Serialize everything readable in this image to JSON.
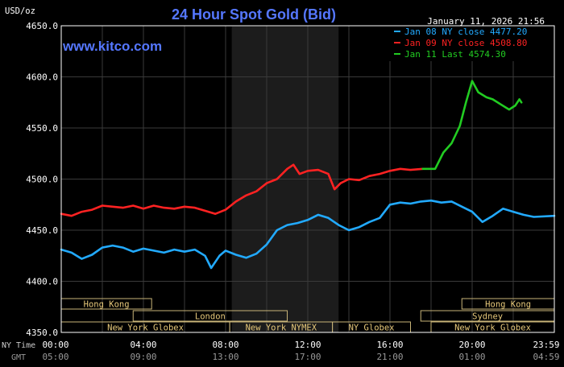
{
  "chart_data": {
    "type": "line",
    "title": "24 Hour Spot Gold (Bid)",
    "unit_label": "USD/oz",
    "watermark": "www.kitco.com",
    "date_label": "January 11, 2026 21:56",
    "y_ticks": [
      "4650.0",
      "4600.0",
      "4550.0",
      "4500.0",
      "4450.0",
      "4400.0",
      "4350.0"
    ],
    "ylim": [
      4350,
      4650
    ],
    "x_range_hours": [
      0,
      24
    ],
    "x_ticks": [
      {
        "h": 0,
        "ny": "00:00",
        "gmt": "05:00"
      },
      {
        "h": 4,
        "ny": "04:00",
        "gmt": "09:00"
      },
      {
        "h": 8,
        "ny": "08:00",
        "gmt": "13:00"
      },
      {
        "h": 12,
        "ny": "12:00",
        "gmt": "17:00"
      },
      {
        "h": 16,
        "ny": "16:00",
        "gmt": "21:00"
      },
      {
        "h": 20,
        "ny": "20:00",
        "gmt": "01:00"
      },
      {
        "h": 24,
        "ny": "23:59",
        "gmt": "04:59"
      }
    ],
    "row_labels": {
      "ny": "NY Time",
      "gmt": "GMT"
    },
    "shaded_range_hours": [
      8.3,
      13.5
    ],
    "legend": [
      {
        "text": "Jan 08 NY close 4477.20",
        "color": "#22aaff"
      },
      {
        "text": "Jan 09 NY close 4508.80",
        "color": "#ff2222"
      },
      {
        "text": "Jan 11 Last 4574.30",
        "color": "#22cc22"
      }
    ],
    "sessions": [
      {
        "label": "Hong Kong",
        "start": 0,
        "end": 4.4,
        "row": 0
      },
      {
        "label": "Hong Kong",
        "start": 19.5,
        "end": 24,
        "row": 0
      },
      {
        "label": "London",
        "start": 3.5,
        "end": 11,
        "row": 1
      },
      {
        "label": "Sydney",
        "start": 17.5,
        "end": 24,
        "row": 1
      },
      {
        "label": "New York Globex",
        "start": 0,
        "end": 8.2,
        "row": 2
      },
      {
        "label": "New York NYMEX",
        "start": 8.2,
        "end": 13.2,
        "row": 2
      },
      {
        "label": "NY Globex",
        "start": 13.2,
        "end": 17,
        "row": 2
      },
      {
        "label": "New York Globex",
        "start": 18,
        "end": 24,
        "row": 2
      }
    ],
    "series": [
      {
        "name": "Jan 08",
        "color": "#22aaff",
        "points": [
          [
            0,
            4431
          ],
          [
            0.5,
            4428
          ],
          [
            1,
            4422
          ],
          [
            1.5,
            4426
          ],
          [
            2,
            4433
          ],
          [
            2.5,
            4435
          ],
          [
            3,
            4433
          ],
          [
            3.5,
            4429
          ],
          [
            4,
            4432
          ],
          [
            4.5,
            4430
          ],
          [
            5,
            4428
          ],
          [
            5.5,
            4431
          ],
          [
            6,
            4429
          ],
          [
            6.5,
            4431
          ],
          [
            7,
            4425
          ],
          [
            7.3,
            4413
          ],
          [
            7.7,
            4425
          ],
          [
            8,
            4430
          ],
          [
            8.5,
            4426
          ],
          [
            9,
            4423
          ],
          [
            9.5,
            4427
          ],
          [
            10,
            4436
          ],
          [
            10.5,
            4450
          ],
          [
            11,
            4455
          ],
          [
            11.5,
            4457
          ],
          [
            12,
            4460
          ],
          [
            12.5,
            4465
          ],
          [
            13,
            4462
          ],
          [
            13.5,
            4455
          ],
          [
            14,
            4450
          ],
          [
            14.5,
            4453
          ],
          [
            15,
            4458
          ],
          [
            15.5,
            4462
          ],
          [
            16,
            4475
          ],
          [
            16.5,
            4477
          ],
          [
            17,
            4476
          ],
          [
            17.5,
            4478
          ],
          [
            18,
            4479
          ],
          [
            18.5,
            4477
          ],
          [
            19,
            4478
          ],
          [
            19.5,
            4473
          ],
          [
            20,
            4468
          ],
          [
            20.5,
            4458
          ],
          [
            21,
            4464
          ],
          [
            21.5,
            4471
          ],
          [
            22,
            4468
          ],
          [
            22.5,
            4465
          ],
          [
            23,
            4463
          ],
          [
            24,
            4464
          ]
        ]
      },
      {
        "name": "Jan 09",
        "color": "#ff2222",
        "points": [
          [
            0,
            4466
          ],
          [
            0.5,
            4464
          ],
          [
            1,
            4468
          ],
          [
            1.5,
            4470
          ],
          [
            2,
            4474
          ],
          [
            2.5,
            4473
          ],
          [
            3,
            4472
          ],
          [
            3.5,
            4474
          ],
          [
            4,
            4471
          ],
          [
            4.5,
            4474
          ],
          [
            5,
            4472
          ],
          [
            5.5,
            4471
          ],
          [
            6,
            4473
          ],
          [
            6.5,
            4472
          ],
          [
            7,
            4469
          ],
          [
            7.5,
            4466
          ],
          [
            8,
            4470
          ],
          [
            8.5,
            4478
          ],
          [
            9,
            4484
          ],
          [
            9.5,
            4488
          ],
          [
            10,
            4496
          ],
          [
            10.5,
            4500
          ],
          [
            11,
            4510
          ],
          [
            11.3,
            4514
          ],
          [
            11.6,
            4505
          ],
          [
            12,
            4508
          ],
          [
            12.5,
            4509
          ],
          [
            13,
            4505
          ],
          [
            13.3,
            4490
          ],
          [
            13.6,
            4496
          ],
          [
            14,
            4500
          ],
          [
            14.5,
            4499
          ],
          [
            15,
            4503
          ],
          [
            15.5,
            4505
          ],
          [
            16,
            4508
          ],
          [
            16.5,
            4510
          ],
          [
            17,
            4509
          ],
          [
            17.6,
            4510
          ]
        ]
      },
      {
        "name": "Jan 11",
        "color": "#22cc22",
        "points": [
          [
            17.6,
            4510
          ],
          [
            18.2,
            4510
          ],
          [
            18.6,
            4526
          ],
          [
            19,
            4535
          ],
          [
            19.4,
            4552
          ],
          [
            19.7,
            4575
          ],
          [
            20,
            4596
          ],
          [
            20.3,
            4585
          ],
          [
            20.7,
            4580
          ],
          [
            21,
            4578
          ],
          [
            21.4,
            4573
          ],
          [
            21.8,
            4568
          ],
          [
            22.1,
            4572
          ],
          [
            22.3,
            4578
          ],
          [
            22.4,
            4575
          ]
        ]
      }
    ]
  }
}
